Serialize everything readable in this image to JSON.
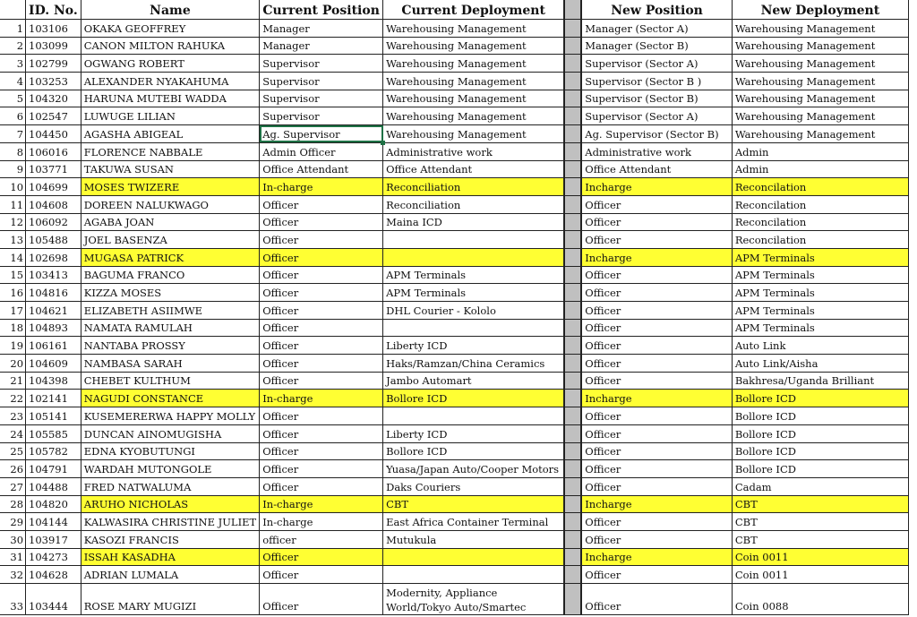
{
  "headers": {
    "rownum": "",
    "id": "ID. No.",
    "name": "Name",
    "current_position": "Current Position",
    "current_deployment": "Current Deployment",
    "spacer": "",
    "new_position": "New Position",
    "new_deployment": "New Deployment"
  },
  "highlight_color": "#ffff33",
  "selection_color": "#1e7145",
  "selected_cell": {
    "row": 7,
    "column": "Current Position"
  },
  "rows": [
    {
      "n": "1",
      "id": "103106",
      "name": "OKAKA GEOFFREY",
      "cp": "Manager",
      "cd": "Warehousing Management",
      "np": "Manager (Sector A)",
      "nd": "Warehousing Management",
      "hl": false
    },
    {
      "n": "2",
      "id": "103099",
      "name": "CANON MILTON RAHUKA",
      "cp": "Manager",
      "cd": "Warehousing Management",
      "np": "Manager (Sector B)",
      "nd": "Warehousing Management",
      "hl": false
    },
    {
      "n": "3",
      "id": "102799",
      "name": "OGWANG ROBERT",
      "cp": "Supervisor",
      "cd": "Warehousing Management",
      "np": "Supervisor (Sector A)",
      "nd": "Warehousing Management",
      "hl": false
    },
    {
      "n": "4",
      "id": "103253",
      "name": "ALEXANDER NYAKAHUMA",
      "cp": "Supervisor",
      "cd": "Warehousing Management",
      "np": "Supervisor (Sector B )",
      "nd": "Warehousing Management",
      "hl": false
    },
    {
      "n": "5",
      "id": "104320",
      "name": "HARUNA MUTEBI WADDA",
      "cp": "Supervisor",
      "cd": "Warehousing Management",
      "np": "Supervisor (Sector B)",
      "nd": "Warehousing Management",
      "hl": false
    },
    {
      "n": "6",
      "id": "102547",
      "name": "LUWUGE LILIAN",
      "cp": "Supervisor",
      "cd": "Warehousing Management",
      "np": "Supervisor (Sector A)",
      "nd": "Warehousing Management",
      "hl": false
    },
    {
      "n": "7",
      "id": "104450",
      "name": "AGASHA ABIGEAL",
      "cp": "Ag. Supervisor",
      "cd": "Warehousing Management",
      "np": "Ag. Supervisor (Sector B)",
      "nd": "Warehousing Management",
      "hl": false
    },
    {
      "n": "8",
      "id": "106016",
      "name": "FLORENCE NABBALE",
      "cp": "Admin Officer",
      "cd": "Administrative work",
      "np": "Administrative work",
      "nd": "Admin",
      "hl": false
    },
    {
      "n": "9",
      "id": "103771",
      "name": "TAKUWA SUSAN",
      "cp": "Office Attendant",
      "cd": "Office Attendant",
      "np": "Office Attendant",
      "nd": "Admin",
      "hl": false
    },
    {
      "n": "10",
      "id": "104699",
      "name": "MOSES TWIZERE",
      "cp": "In-charge",
      "cd": "Reconciliation",
      "np": "Incharge",
      "nd": "Reconcilation",
      "hl": true
    },
    {
      "n": "11",
      "id": "104608",
      "name": "DOREEN NALUKWAGO",
      "cp": "Officer",
      "cd": "Reconciliation",
      "np": "Officer",
      "nd": "Reconcilation",
      "hl": false
    },
    {
      "n": "12",
      "id": "106092",
      "name": "AGABA JOAN",
      "cp": "Officer",
      "cd": "Maina ICD",
      "np": "Officer",
      "nd": "Reconcilation",
      "hl": false
    },
    {
      "n": "13",
      "id": "105488",
      "name": "JOEL BASENZA",
      "cp": "Officer",
      "cd": "",
      "np": "Officer",
      "nd": "Reconcilation",
      "hl": false
    },
    {
      "n": "14",
      "id": "102698",
      "name": "MUGASA PATRICK",
      "cp": "Officer",
      "cd": "",
      "np": "Incharge",
      "nd": "APM Terminals",
      "hl": true
    },
    {
      "n": "15",
      "id": "103413",
      "name": "BAGUMA FRANCO",
      "cp": "Officer",
      "cd": "APM Terminals",
      "np": "Officer",
      "nd": "APM Terminals",
      "hl": false
    },
    {
      "n": "16",
      "id": "104816",
      "name": "KIZZA MOSES",
      "cp": "Officer",
      "cd": "APM Terminals",
      "np": "Officer",
      "nd": "APM Terminals",
      "hl": false
    },
    {
      "n": "17",
      "id": "104621",
      "name": "ELIZABETH ASIIMWE",
      "cp": "Officer",
      "cd": "DHL Courier - Kololo",
      "np": "Officer",
      "nd": "APM Terminals",
      "hl": false
    },
    {
      "n": "18",
      "id": "104893",
      "name": "NAMATA RAMULAH",
      "cp": "Officer",
      "cd": "",
      "np": "Officer",
      "nd": "APM Terminals",
      "hl": false
    },
    {
      "n": "19",
      "id": "106161",
      "name": "NANTABA PROSSY",
      "cp": "Officer",
      "cd": "Liberty ICD",
      "np": "Officer",
      "nd": "Auto Link",
      "hl": false
    },
    {
      "n": "20",
      "id": "104609",
      "name": "NAMBASA SARAH",
      "cp": "Officer",
      "cd": "Haks/Ramzan/China Ceramics",
      "np": "Officer",
      "nd": "Auto Link/Aisha",
      "hl": false
    },
    {
      "n": "21",
      "id": "104398",
      "name": "CHEBET KULTHUM",
      "cp": "Officer",
      "cd": "Jambo Automart",
      "np": "Officer",
      "nd": "Bakhresa/Uganda Brilliant",
      "hl": false
    },
    {
      "n": "22",
      "id": "102141",
      "name": "NAGUDI CONSTANCE",
      "cp": "In-charge",
      "cd": "Bollore ICD",
      "np": "Incharge",
      "nd": "Bollore ICD",
      "hl": true
    },
    {
      "n": "23",
      "id": "105141",
      "name": "KUSEMERERWA HAPPY MOLLY",
      "cp": "Officer",
      "cd": "",
      "np": "Officer",
      "nd": "Bollore ICD",
      "hl": false
    },
    {
      "n": "24",
      "id": "105585",
      "name": "DUNCAN AINOMUGISHA",
      "cp": "Officer",
      "cd": "Liberty ICD",
      "np": "Officer",
      "nd": "Bollore ICD",
      "hl": false
    },
    {
      "n": "25",
      "id": "105782",
      "name": "EDNA KYOBUTUNGI",
      "cp": "Officer",
      "cd": "Bollore ICD",
      "np": "Officer",
      "nd": "Bollore ICD",
      "hl": false
    },
    {
      "n": "26",
      "id": "104791",
      "name": "WARDAH MUTONGOLE",
      "cp": "Officer",
      "cd": "Yuasa/Japan Auto/Cooper Motors",
      "np": "Officer",
      "nd": "Bollore ICD",
      "hl": false
    },
    {
      "n": "27",
      "id": "104488",
      "name": "FRED NATWALUMA",
      "cp": "Officer",
      "cd": "Daks Couriers",
      "np": "Officer",
      "nd": "Cadam",
      "hl": false
    },
    {
      "n": "28",
      "id": "104820",
      "name": "ARUHO NICHOLAS",
      "cp": "In-charge",
      "cd": "CBT",
      "np": "Incharge",
      "nd": "CBT",
      "hl": true
    },
    {
      "n": "29",
      "id": "104144",
      "name": "KALWASIRA CHRISTINE JULIET",
      "cp": "In-charge",
      "cd": "East Africa Container Terminal",
      "np": "Officer",
      "nd": "CBT",
      "hl": false
    },
    {
      "n": "30",
      "id": "103917",
      "name": "KASOZI FRANCIS",
      "cp": "officer",
      "cd": "Mutukula",
      "np": "Officer",
      "nd": "CBT",
      "hl": false
    },
    {
      "n": "31",
      "id": "104273",
      "name": "ISSAH KASADHA",
      "cp": "Officer",
      "cd": "",
      "np": "Incharge",
      "nd": "Coin 0011",
      "hl": true
    },
    {
      "n": "32",
      "id": "104628",
      "name": "ADRIAN LUMALA",
      "cp": "Officer",
      "cd": "",
      "np": "Officer",
      "nd": "Coin 0011",
      "hl": false
    },
    {
      "n": "33",
      "id": "103444",
      "name": "ROSE MARY MUGIZI",
      "cp": "Officer",
      "cd": "Modernity, Appliance World/Tokyo Auto/Smartec",
      "np": "Officer",
      "nd": "Coin 0088",
      "hl": false
    }
  ]
}
